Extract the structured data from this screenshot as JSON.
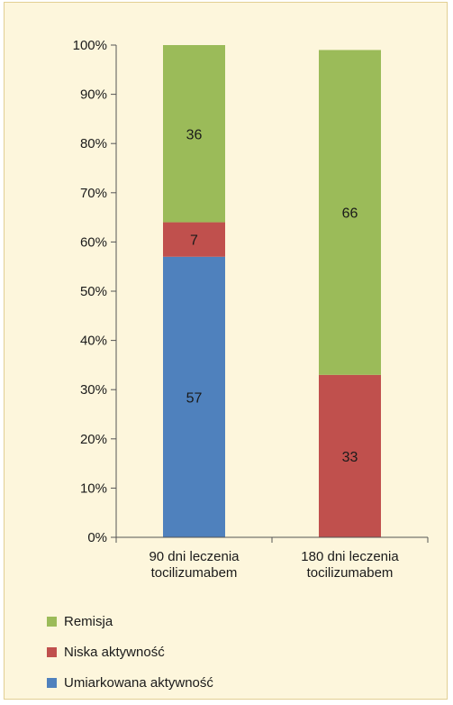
{
  "chart_data": {
    "type": "bar",
    "stacked": true,
    "categories": [
      [
        "90 dni leczenia",
        "tocilizumabem"
      ],
      [
        "180 dni leczenia",
        "tocilizumabem"
      ]
    ],
    "series": [
      {
        "name": "Umiarkowana aktywność",
        "color": "#4f81bd",
        "values": [
          57,
          0
        ]
      },
      {
        "name": "Niska aktywność",
        "color": "#c0504d",
        "values": [
          7,
          33
        ]
      },
      {
        "name": "Remisja",
        "color": "#9bbb59",
        "values": [
          36,
          66
        ]
      }
    ],
    "yticks": [
      "0%",
      "10%",
      "20%",
      "30%",
      "40%",
      "50%",
      "60%",
      "70%",
      "80%",
      "90%",
      "100%"
    ],
    "ylim": [
      0,
      100
    ],
    "legend": {
      "position": "bottom-left",
      "order": [
        "Remisja",
        "Niska aktywność",
        "Umiarkowana aktywność"
      ],
      "labels": [
        "Remisja",
        "Niska aktywność",
        "Umiarkowana aktywność"
      ]
    }
  }
}
